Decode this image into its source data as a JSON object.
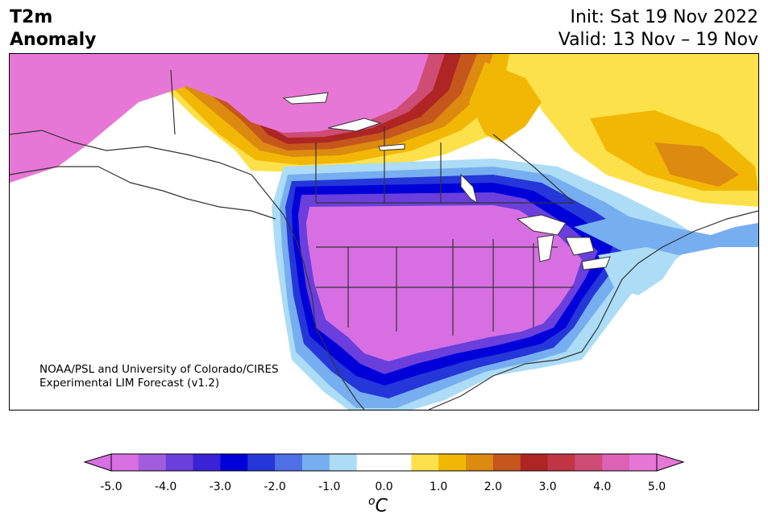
{
  "title": {
    "left_line1": "T2m",
    "left_line2": "Anomaly",
    "right_line1": "Init: Sat 19 Nov 2022",
    "right_line2": "Valid: 13 Nov – 19 Nov"
  },
  "credit": {
    "line1": "NOAA/PSL and University of Colorado/CIRES",
    "line2": "Experimental LIM Forecast (v1.2)"
  },
  "colorbar": {
    "unit_base": "C",
    "unit_sup": "o",
    "ticks": [
      "-5.0",
      "-4.0",
      "-3.0",
      "-2.0",
      "-1.0",
      "0.0",
      "1.0",
      "2.0",
      "3.0",
      "4.0",
      "5.0"
    ],
    "colors": [
      "#d76fe3",
      "#a25ddd",
      "#6a3fdc",
      "#3a22d6",
      "#0000d9",
      "#2537d9",
      "#4e6fe6",
      "#76aef0",
      "#acdcf6",
      "#ffffff",
      "#ffffff",
      "#fde14a",
      "#f2b705",
      "#dc8a10",
      "#c5561c",
      "#ae2524",
      "#c23545",
      "#cf4c74",
      "#dd62b6",
      "#e777d6"
    ],
    "over_color": "#e777d6",
    "under_color": "#d76fe3"
  }
}
